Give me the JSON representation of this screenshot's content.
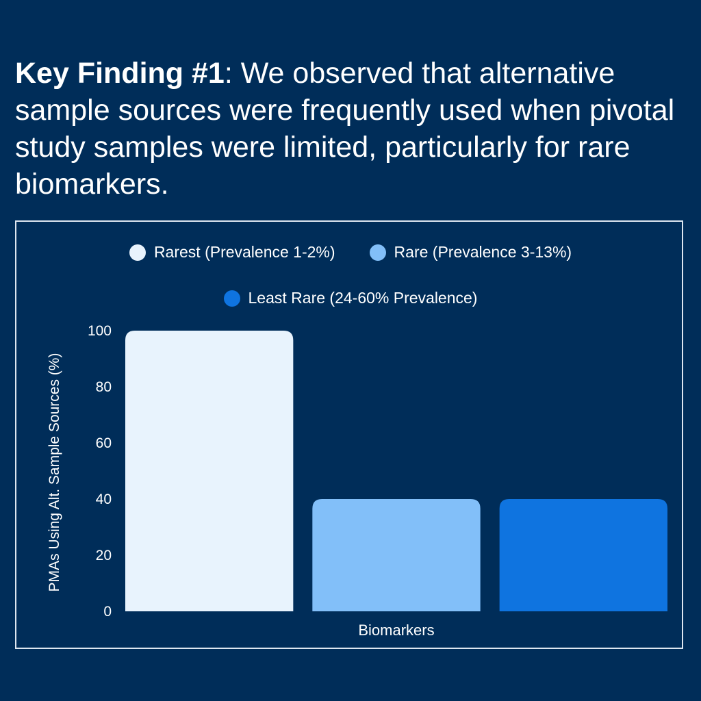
{
  "headline": {
    "bold": "Key Finding #1",
    "rest": ": We observed that alternative sample sources were frequently used when pivotal study samples were limited, particularly for rare biomarkers."
  },
  "colors": {
    "background": "#002d59",
    "rarest": "#e8f3fd",
    "rare": "#82bff9",
    "least_rare": "#0f74e0"
  },
  "chart_data": {
    "type": "bar",
    "title": "",
    "xlabel": "Biomarkers",
    "ylabel": "PMAs Using Alt. Sample Sources (%)",
    "ylim": [
      0,
      100
    ],
    "yticks": [
      0,
      20,
      40,
      60,
      80,
      100
    ],
    "grid": false,
    "legend_position": "top-center",
    "series": [
      {
        "name": "Rarest (Prevalence 1-2%)",
        "value": 100,
        "color": "#e8f3fd"
      },
      {
        "name": "Rare (Prevalence 3-13%)",
        "value": 40,
        "color": "#82bff9"
      },
      {
        "name": "Least Rare (24-60% Prevalence)",
        "value": 40,
        "color": "#0f74e0"
      }
    ]
  }
}
